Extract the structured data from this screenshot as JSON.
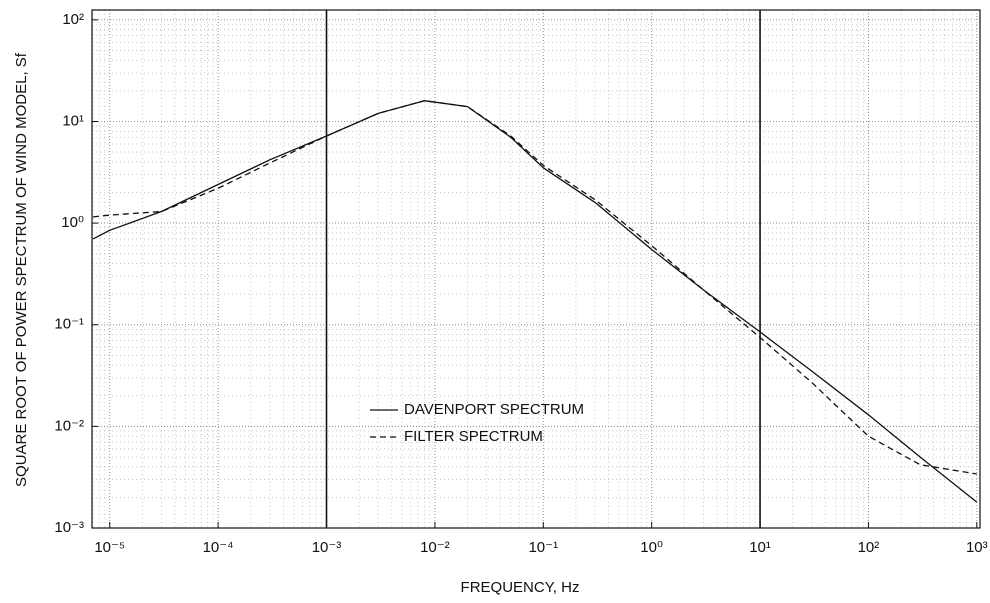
{
  "chart_data": {
    "type": "line",
    "xlabel": "FREQUENCY, Hz",
    "ylabel": "SQUARE ROOT OF POWER SPECTRUM OF WIND MODEL, Sf",
    "xscale": "log",
    "yscale": "log",
    "grid": true,
    "minor_grid": true,
    "legend_position": "lower center",
    "xlim": [
      6.86e-06,
      1070
    ],
    "ylim": [
      0.001,
      125
    ],
    "xticks": [
      {
        "value": 1e-05,
        "label": "10⁻⁵"
      },
      {
        "value": 0.0001,
        "label": "10⁻⁴"
      },
      {
        "value": 0.001,
        "label": "10⁻³"
      },
      {
        "value": 0.01,
        "label": "10⁻²"
      },
      {
        "value": 0.1,
        "label": "10⁻¹"
      },
      {
        "value": 1,
        "label": "10⁰"
      },
      {
        "value": 10,
        "label": "10¹"
      },
      {
        "value": 100,
        "label": "10²"
      },
      {
        "value": 1000,
        "label": "10³"
      }
    ],
    "yticks": [
      {
        "value": 0.001,
        "label": "10⁻³"
      },
      {
        "value": 0.01,
        "label": "10⁻²"
      },
      {
        "value": 0.1,
        "label": "10⁻¹"
      },
      {
        "value": 1,
        "label": "10⁰"
      },
      {
        "value": 10,
        "label": "10¹"
      },
      {
        "value": 100,
        "label": "10²"
      }
    ],
    "vlines": [
      0.001,
      10
    ],
    "x": [
      7e-06,
      1e-05,
      3e-05,
      0.0001,
      0.0003,
      0.001,
      0.003,
      0.008,
      0.02,
      0.05,
      0.1,
      0.3,
      1,
      3,
      10,
      30,
      100,
      300,
      1000
    ],
    "series": [
      {
        "name": "DAVENPORT SPECTRUM",
        "color": "#111111",
        "style": "solid",
        "values": [
          0.7,
          0.85,
          1.3,
          2.4,
          4.2,
          7.2,
          12,
          16,
          14,
          7,
          3.5,
          1.6,
          0.55,
          0.22,
          0.085,
          0.035,
          0.013,
          0.005,
          0.0018
        ]
      },
      {
        "name": "FILTER SPECTRUM",
        "color": "#111111",
        "style": "dashed",
        "values": [
          1.15,
          1.2,
          1.3,
          2.2,
          3.9,
          7.2,
          12,
          16,
          14,
          7.2,
          3.7,
          1.7,
          0.6,
          0.22,
          0.075,
          0.027,
          0.008,
          0.0042,
          0.0034
        ]
      }
    ]
  }
}
